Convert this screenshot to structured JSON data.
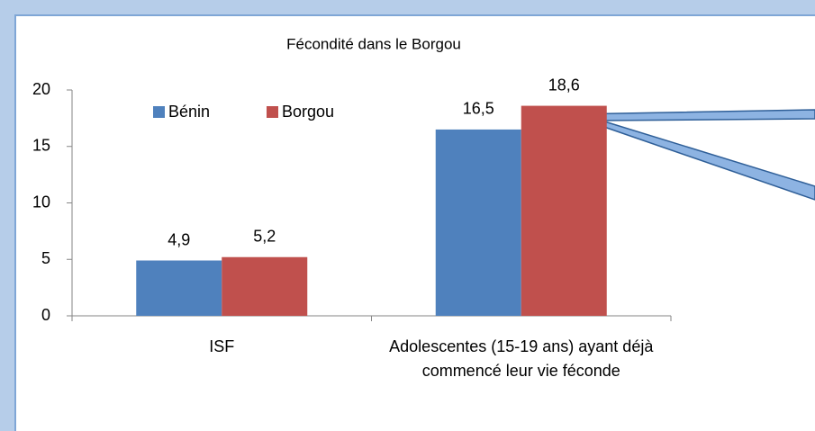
{
  "chart_data": {
    "type": "bar",
    "title": "Fécondité dans le Borgou",
    "categories": [
      "ISF",
      "Adolescentes (15-19 ans) ayant déjà commencé leur vie féconde"
    ],
    "series": [
      {
        "name": "Bénin",
        "color": "#4f81bd",
        "values": [
          4.9,
          16.5
        ],
        "value_labels": [
          "4,9",
          "16,5"
        ]
      },
      {
        "name": "Borgou",
        "color": "#c0504d",
        "values": [
          5.2,
          18.6
        ],
        "value_labels": [
          "5,2",
          "18,6"
        ]
      }
    ],
    "ylim": [
      0,
      20
    ],
    "yticks": [
      0,
      5,
      10,
      15,
      20
    ],
    "grid": false,
    "legend": "top-left"
  }
}
